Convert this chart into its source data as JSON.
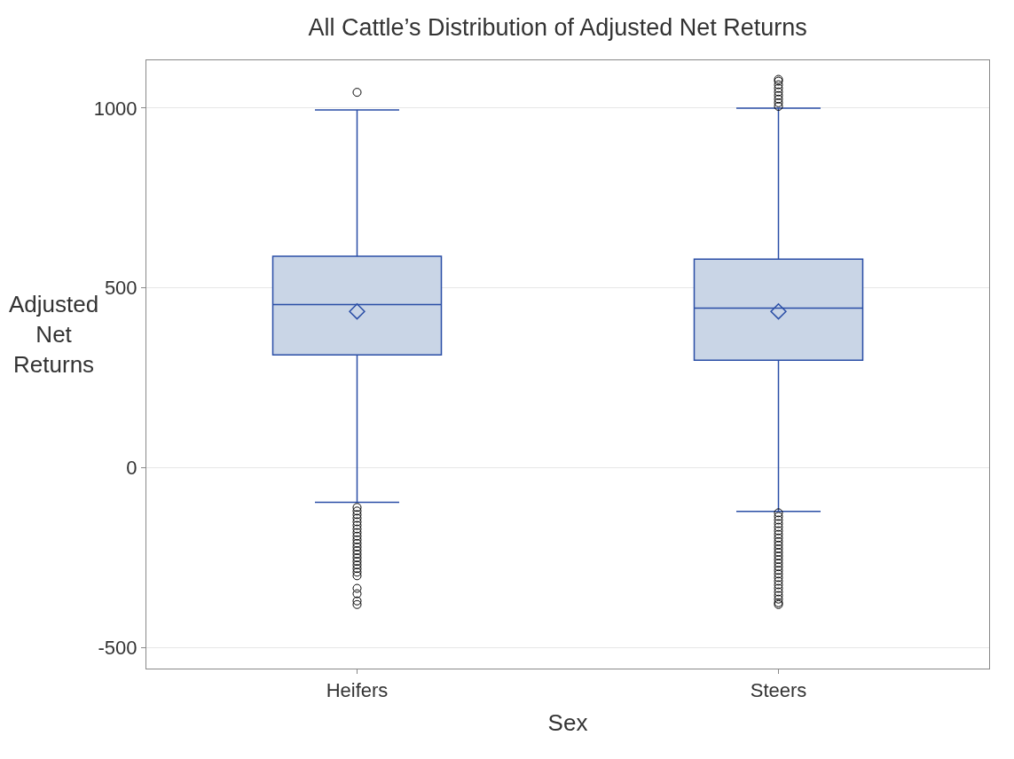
{
  "chart_data": {
    "type": "box",
    "title": "All Cattle’s Distribution of Adjusted Net Returns",
    "xlabel": "Sex",
    "ylabel": "Adjusted Net Returns",
    "categories": [
      "Heifers",
      "Steers"
    ],
    "boxes": [
      {
        "low": -96,
        "q1": 314,
        "median": 454,
        "q3": 588,
        "high": 995,
        "mean": 435,
        "outliers": [
          1044,
          -110,
          -120,
          -130,
          -140,
          -150,
          -160,
          -170,
          -180,
          -190,
          -200,
          -210,
          -220,
          -230,
          -240,
          -250,
          -260,
          -270,
          -280,
          -290,
          -300,
          -335,
          -350,
          -370,
          -380
        ]
      },
      {
        "low": -121,
        "q1": 299,
        "median": 444,
        "q3": 580,
        "high": 1000,
        "mean": 435,
        "outliers": [
          1005,
          1015,
          1025,
          1035,
          1045,
          1055,
          1065,
          1075,
          1080,
          -125,
          -135,
          -145,
          -155,
          -165,
          -175,
          -185,
          -195,
          -205,
          -215,
          -225,
          -235,
          -245,
          -255,
          -265,
          -275,
          -285,
          -295,
          -305,
          -315,
          -325,
          -335,
          -345,
          -355,
          -365,
          -375,
          -380
        ]
      }
    ],
    "color": "#c9d5e6",
    "ylim": [
      -558,
      1133
    ],
    "yticks": [
      -500,
      0,
      500,
      1000
    ],
    "grid": "y"
  }
}
